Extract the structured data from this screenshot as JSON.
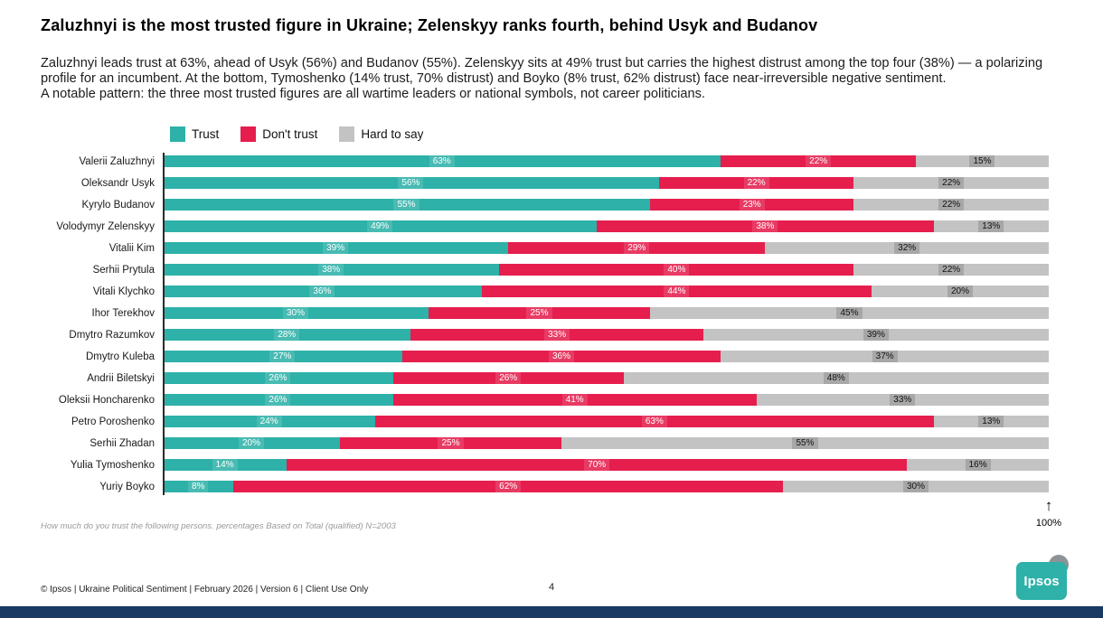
{
  "title": "Zaluzhnyi is the most trusted figure in Ukraine; Zelenskyy ranks fourth, behind Usyk and Budanov",
  "intro": {
    "para1": "Zaluzhnyi leads trust at 63%, ahead of Usyk (56%) and Budanov (55%). Zelenskyy sits at 49% trust but carries the highest distrust among the top four (38%) — a polarizing profile for an incumbent. At the bottom, Tymoshenko (14% trust, 70% distrust) and Boyko (8% trust, 62% distrust) face near-irreversible negative sentiment.",
    "para2": "A notable pattern: the three most trusted figures are all wartime leaders or national symbols, not career politicians."
  },
  "legend": [
    {
      "label": "Trust",
      "color": "#2db1a8"
    },
    {
      "label": "Don't trust",
      "color": "#e51e4d"
    },
    {
      "label": "Hard to say",
      "color": "#c3c3c3"
    }
  ],
  "chart_data": {
    "type": "bar",
    "orientation": "horizontal",
    "stacked": true,
    "xlim": [
      0,
      100
    ],
    "axis_marker": "100%",
    "categories": [
      "Valerii Zaluzhnyi",
      "Oleksandr Usyk",
      "Kyrylo Budanov",
      "Volodymyr Zelenskyy",
      "Vitalii Kim",
      "Serhii Prytula",
      "Vitali Klychko",
      "Ihor Terekhov",
      "Dmytro Razumkov",
      "Dmytro Kuleba",
      "Andrii Biletskyi",
      "Oleksii Honcharenko",
      "Petro Poroshenko",
      "Serhii Zhadan",
      "Yulia Tymoshenko",
      "Yuriy Boyko"
    ],
    "series": [
      {
        "name": "Trust",
        "color": "#2db1a8",
        "values": [
          63,
          56,
          55,
          49,
          39,
          38,
          36,
          30,
          28,
          27,
          26,
          26,
          24,
          20,
          14,
          8
        ]
      },
      {
        "name": "Don't trust",
        "color": "#e51e4d",
        "values": [
          22,
          22,
          23,
          38,
          29,
          40,
          44,
          25,
          33,
          36,
          26,
          41,
          63,
          25,
          70,
          62
        ]
      },
      {
        "name": "Hard to say",
        "color": "#c3c3c3",
        "values": [
          15,
          22,
          22,
          13,
          32,
          22,
          20,
          45,
          39,
          37,
          48,
          33,
          13,
          55,
          16,
          30
        ]
      }
    ]
  },
  "icons": {
    "arrow_up": "↑"
  },
  "footnote": "How much do you trust the following persons. percentages Based on Total (qualified) N=2003",
  "footer": {
    "left": "© Ipsos | Ukraine Political Sentiment | February 2026 | Version 6 | Client Use Only",
    "page_number": "4",
    "logo": "Ipsos"
  },
  "colors": {
    "trust": "#2db1a8",
    "distrust": "#e51e4d",
    "neutral": "#c3c3c3",
    "logo_teal": "#2db1a8",
    "bottom_bar": "#1b3a63"
  }
}
